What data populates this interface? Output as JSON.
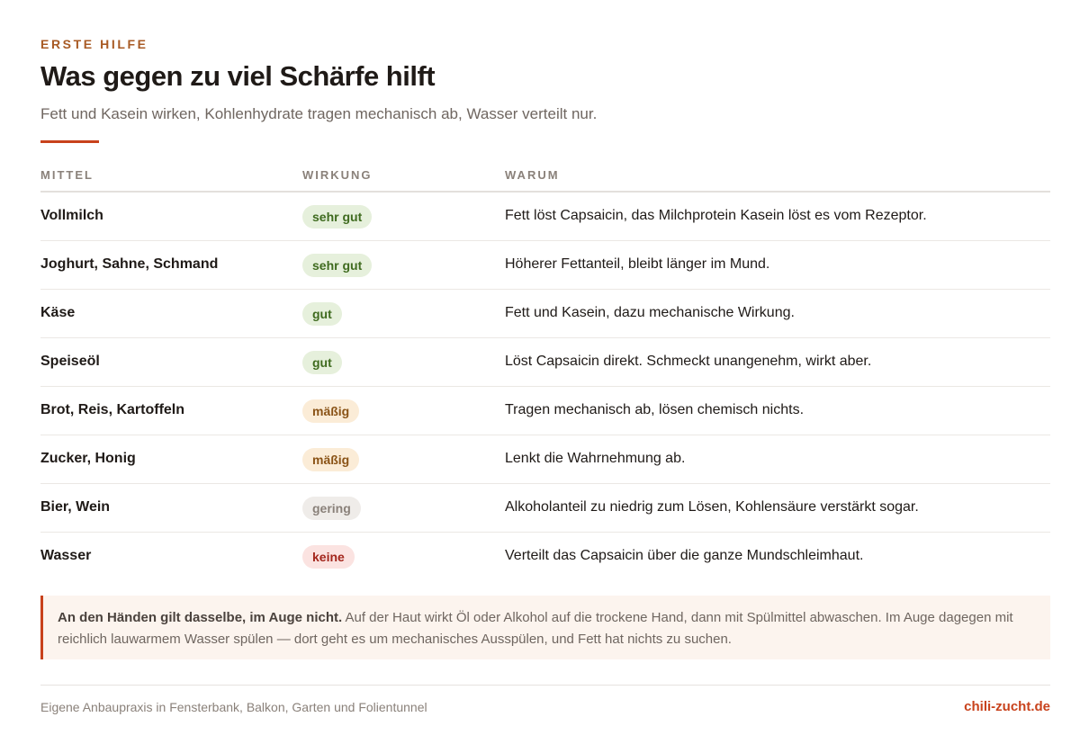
{
  "header": {
    "eyebrow": "ERSTE HILFE",
    "title": "Was gegen zu viel Schärfe hilft",
    "subtitle": "Fett und Kasein wirken, Kohlenhydrate tragen mechanisch ab, Wasser verteilt nur."
  },
  "table": {
    "columns": [
      "MITTEL",
      "WIRKUNG",
      "WARUM"
    ],
    "rows": [
      {
        "mittel": "Vollmilch",
        "wirkung": "sehr gut",
        "level": "sehr",
        "warum": "Fett löst Capsaicin, das Milchprotein Kasein löst es vom Rezeptor."
      },
      {
        "mittel": "Joghurt, Sahne, Schmand",
        "wirkung": "sehr gut",
        "level": "sehr",
        "warum": "Höherer Fettanteil, bleibt länger im Mund."
      },
      {
        "mittel": "Käse",
        "wirkung": "gut",
        "level": "gut",
        "warum": "Fett und Kasein, dazu mechanische Wirkung."
      },
      {
        "mittel": "Speiseöl",
        "wirkung": "gut",
        "level": "gut",
        "warum": "Löst Capsaicin direkt. Schmeckt unangenehm, wirkt aber."
      },
      {
        "mittel": "Brot, Reis, Kartoffeln",
        "wirkung": "mäßig",
        "level": "maessig",
        "warum": "Tragen mechanisch ab, lösen chemisch nichts."
      },
      {
        "mittel": "Zucker, Honig",
        "wirkung": "mäßig",
        "level": "maessig",
        "warum": "Lenkt die Wahrnehmung ab."
      },
      {
        "mittel": "Bier, Wein",
        "wirkung": "gering",
        "level": "gering",
        "warum": "Alkoholanteil zu niedrig zum Lösen, Kohlensäure verstärkt sogar."
      },
      {
        "mittel": "Wasser",
        "wirkung": "keine",
        "level": "keine",
        "warum": "Verteilt das Capsaicin über die ganze Mundschleimhaut."
      }
    ]
  },
  "note": {
    "lead": "An den Händen gilt dasselbe, im Auge nicht.",
    "text": " Auf der Haut wirkt Öl oder Alkohol auf die trockene Hand, dann mit Spülmittel abwaschen. Im Auge dagegen mit reichlich lauwarmem Wasser spülen — dort geht es um mechanisches Ausspülen, und Fett hat nichts zu suchen."
  },
  "footer": {
    "left": "Eigene Anbaupraxis in Fensterbank, Balkon, Garten und Folientunnel",
    "right": "chili-zucht.de"
  },
  "colors": {
    "accent": "#c8421c",
    "eyebrow": "#a85a24",
    "very_good": "#3f6b1f",
    "moderate": "#8a5316",
    "none": "#a3261c"
  }
}
